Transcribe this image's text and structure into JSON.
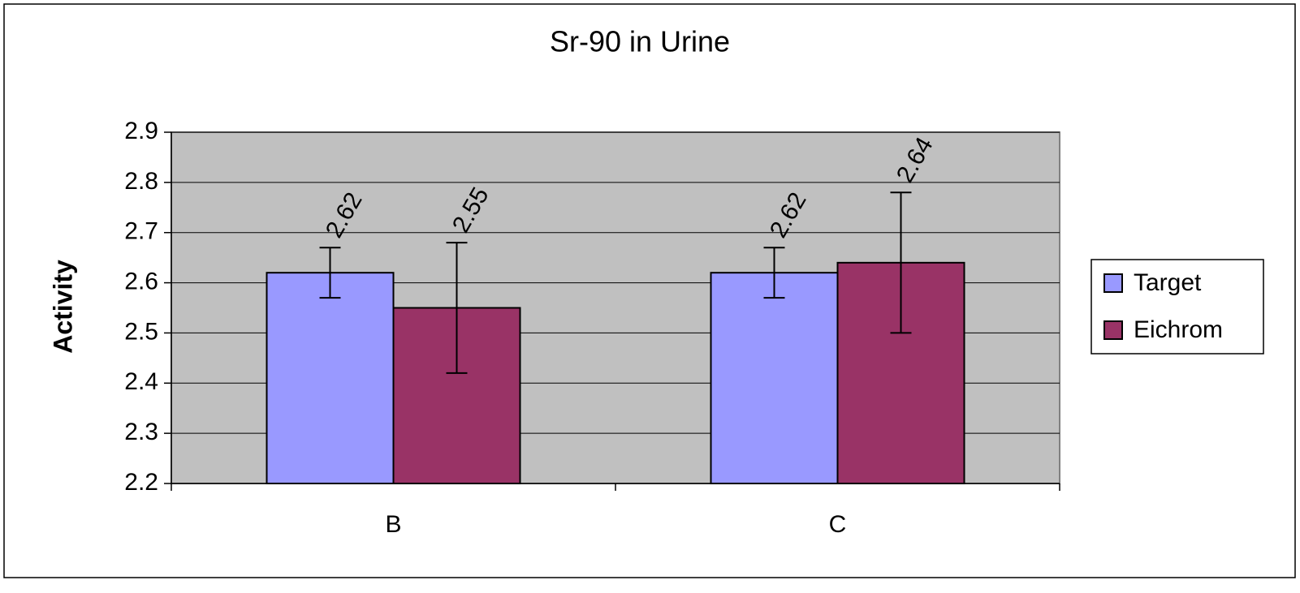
{
  "chart_data": {
    "type": "bar",
    "title": "Sr-90 in Urine",
    "y_label": "Activity",
    "categories": [
      "B",
      "C"
    ],
    "series": [
      {
        "name": "Target",
        "color": "#9999ff",
        "values": [
          2.62,
          2.62
        ],
        "errors": [
          0.05,
          0.05
        ]
      },
      {
        "name": "Eichrom",
        "color": "#993366",
        "values": [
          2.55,
          2.64
        ],
        "errors": [
          0.13,
          0.14
        ]
      }
    ],
    "ylim": [
      2.2,
      2.9
    ],
    "yticks": [
      2.2,
      2.3,
      2.4,
      2.5,
      2.6,
      2.7,
      2.8,
      2.9
    ],
    "grid": true,
    "plot_background": "#c0c0c0",
    "legend": "right"
  }
}
